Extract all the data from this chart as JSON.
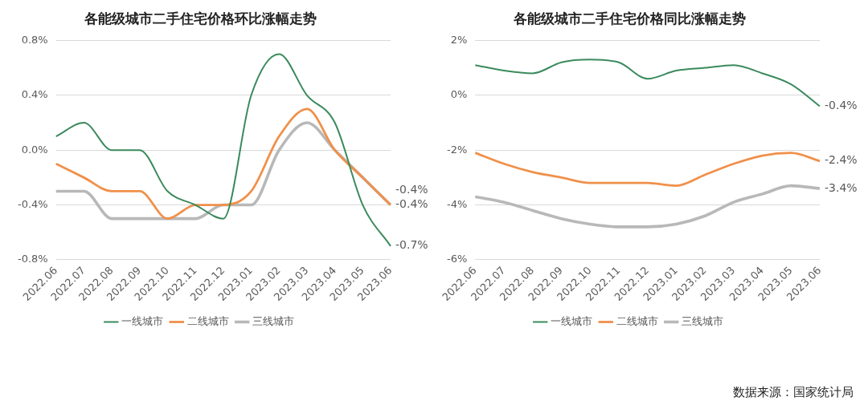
{
  "chart_data": [
    {
      "type": "line",
      "title": "各能级城市二手住宅价格环比涨幅走势",
      "categories": [
        "2022.06",
        "2022.07",
        "2022.08",
        "2022.09",
        "2022.10",
        "2022.11",
        "2022.12",
        "2023.01",
        "2023.02",
        "2023.03",
        "2023.04",
        "2023.05",
        "2023.06"
      ],
      "series": [
        {
          "name": "一线城市",
          "color": "#3a8a5c",
          "values": [
            0.1,
            0.2,
            0.0,
            0.0,
            -0.3,
            -0.4,
            -0.5,
            0.4,
            0.7,
            0.4,
            0.2,
            -0.4,
            -0.7
          ],
          "value_labels": [
            null,
            null,
            null,
            null,
            null,
            null,
            null,
            null,
            null,
            null,
            null,
            null,
            "-0.7%"
          ]
        },
        {
          "name": "二线城市",
          "color": "#f0904a",
          "values": [
            -0.1,
            -0.2,
            -0.3,
            -0.3,
            -0.5,
            -0.4,
            -0.4,
            -0.3,
            0.1,
            0.3,
            0.0,
            -0.2,
            -0.4
          ],
          "value_labels": [
            null,
            null,
            null,
            null,
            null,
            null,
            null,
            null,
            null,
            null,
            null,
            null,
            "-0.4%"
          ]
        },
        {
          "name": "三线城市",
          "color": "#b8b8b8",
          "values": [
            -0.3,
            -0.3,
            -0.5,
            -0.5,
            -0.5,
            -0.5,
            -0.4,
            -0.4,
            0.0,
            0.2,
            0.0,
            -0.2,
            -0.4
          ],
          "value_labels": [
            null,
            null,
            null,
            null,
            null,
            null,
            null,
            null,
            null,
            null,
            null,
            null,
            "-0.4%"
          ]
        }
      ],
      "ylim": [
        -0.8,
        0.8
      ],
      "yticks": [
        {
          "value": -0.8,
          "label": "-0.8%"
        },
        {
          "value": -0.4,
          "label": "-0.4%"
        },
        {
          "value": 0,
          "label": "0.0%"
        },
        {
          "value": 0.4,
          "label": "0.4%"
        },
        {
          "value": 0.8,
          "label": "0.8%"
        }
      ],
      "grid": "y",
      "legend": "bottom",
      "marker": "none",
      "line_style": "solid"
    },
    {
      "type": "line",
      "title": "各能级城市二手住宅价格同比涨幅走势",
      "categories": [
        "2022.06",
        "2022.07",
        "2022.08",
        "2022.09",
        "2022.10",
        "2022.11",
        "2022.12",
        "2023.01",
        "2023.02",
        "2023.03",
        "2023.04",
        "2023.05",
        "2023.06"
      ],
      "series": [
        {
          "name": "一线城市",
          "color": "#3a8a5c",
          "values": [
            1.1,
            0.9,
            0.8,
            1.2,
            1.3,
            1.2,
            0.6,
            0.9,
            1.0,
            1.1,
            0.8,
            0.4,
            -0.4
          ],
          "value_labels": [
            null,
            null,
            null,
            null,
            null,
            null,
            null,
            null,
            null,
            null,
            null,
            null,
            "-0.4%"
          ]
        },
        {
          "name": "二线城市",
          "color": "#f0904a",
          "values": [
            -2.1,
            -2.5,
            -2.8,
            -3.0,
            -3.2,
            -3.2,
            -3.2,
            -3.3,
            -2.9,
            -2.5,
            -2.2,
            -2.1,
            -2.4
          ],
          "value_labels": [
            null,
            null,
            null,
            null,
            null,
            null,
            null,
            null,
            null,
            null,
            null,
            null,
            "-2.4%"
          ]
        },
        {
          "name": "三线城市",
          "color": "#b8b8b8",
          "values": [
            -3.7,
            -3.9,
            -4.2,
            -4.5,
            -4.7,
            -4.8,
            -4.8,
            -4.7,
            -4.4,
            -3.9,
            -3.6,
            -3.3,
            -3.4
          ],
          "value_labels": [
            null,
            null,
            null,
            null,
            null,
            null,
            null,
            null,
            null,
            null,
            null,
            null,
            "-3.4%"
          ]
        }
      ],
      "ylim": [
        -6,
        2
      ],
      "yticks": [
        {
          "value": -6,
          "label": "-6%"
        },
        {
          "value": -4,
          "label": "-4%"
        },
        {
          "value": -2,
          "label": "-2%"
        },
        {
          "value": 0,
          "label": "0%"
        },
        {
          "value": 2,
          "label": "2%"
        }
      ],
      "grid": "y",
      "legend": "bottom",
      "marker": "none",
      "line_style": "solid",
      "annotations": [
        "数据来源：国家统计局"
      ]
    }
  ]
}
